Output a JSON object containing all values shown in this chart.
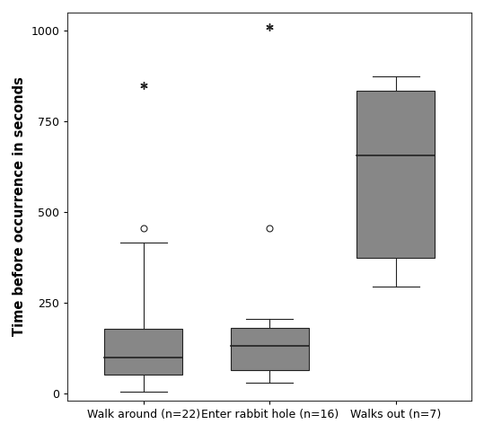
{
  "categories": [
    "Walk around (n=22)",
    "Enter rabbit hole (n=16)",
    "Walks out (n=7)"
  ],
  "box_data": [
    {
      "q1": 52,
      "median": 100,
      "q3": 178,
      "whisker_low": 5,
      "whisker_high": 415,
      "outliers_circle": [
        455
      ],
      "outliers_star": [
        850
      ]
    },
    {
      "q1": 65,
      "median": 130,
      "q3": 180,
      "whisker_low": 30,
      "whisker_high": 205,
      "outliers_circle": [
        455
      ],
      "outliers_star": [
        1010
      ]
    },
    {
      "q1": 375,
      "median": 655,
      "q3": 835,
      "whisker_low": 295,
      "whisker_high": 875,
      "outliers_circle": [],
      "outliers_star": []
    }
  ],
  "ylabel": "Time before occurrence in seconds",
  "ylim": [
    -20,
    1050
  ],
  "yticks": [
    0,
    250,
    500,
    750,
    1000
  ],
  "box_color": "#878787",
  "box_linecolor": "#222222",
  "background_color": "#ffffff",
  "box_width": 0.62,
  "figsize": [
    5.39,
    4.82
  ],
  "dpi": 100
}
